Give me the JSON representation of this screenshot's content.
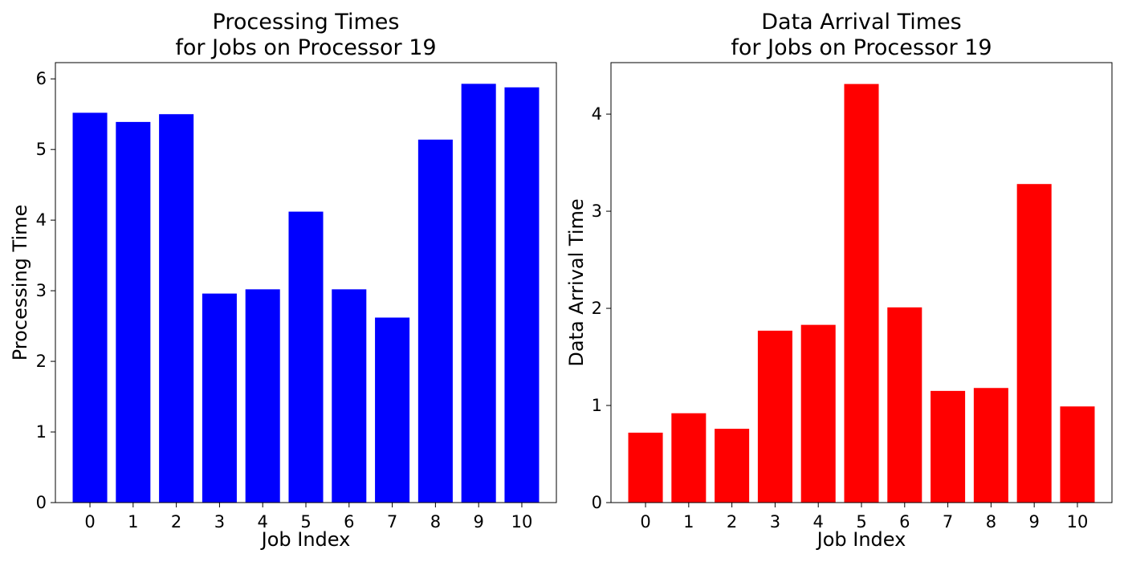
{
  "chart_data": [
    {
      "type": "bar",
      "title_lines": [
        "Processing Times",
        "for Jobs on Processor 19"
      ],
      "xlabel": "Job Index",
      "ylabel": "Processing Time",
      "categories": [
        "0",
        "1",
        "2",
        "3",
        "4",
        "5",
        "6",
        "7",
        "8",
        "9",
        "10"
      ],
      "values": [
        5.52,
        5.39,
        5.5,
        2.96,
        3.02,
        4.12,
        3.02,
        2.62,
        5.14,
        5.93,
        5.88
      ],
      "color": "#0000ff",
      "ylim": [
        0,
        6.23
      ],
      "yticks": [
        0,
        1,
        2,
        3,
        4,
        5,
        6
      ],
      "grid": false,
      "legend": "none"
    },
    {
      "type": "bar",
      "title_lines": [
        "Data Arrival Times",
        "for Jobs on Processor 19"
      ],
      "xlabel": "Job Index",
      "ylabel": "Data Arrival Time",
      "categories": [
        "0",
        "1",
        "2",
        "3",
        "4",
        "5",
        "6",
        "7",
        "8",
        "9",
        "10"
      ],
      "values": [
        0.72,
        0.92,
        0.76,
        1.77,
        1.83,
        4.31,
        2.01,
        1.15,
        1.18,
        3.28,
        0.99
      ],
      "color": "#ff0000",
      "ylim": [
        0,
        4.53
      ],
      "yticks": [
        0,
        1,
        2,
        3,
        4
      ],
      "grid": false,
      "legend": "none"
    }
  ]
}
